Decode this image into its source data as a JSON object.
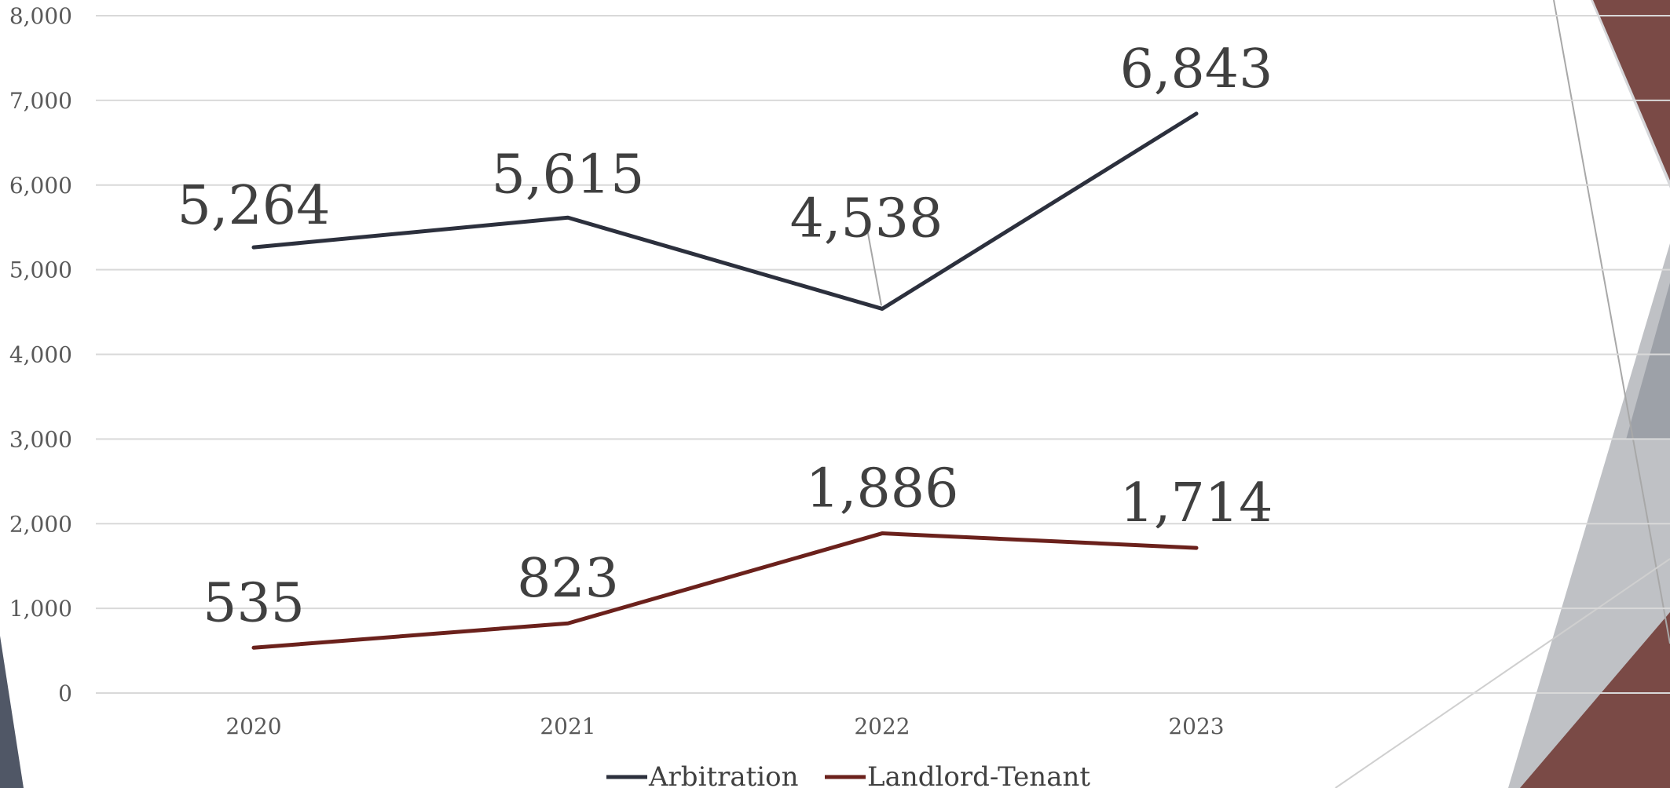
{
  "chart_data": {
    "type": "line",
    "categories": [
      "2020",
      "2021",
      "2022",
      "2023"
    ],
    "series": [
      {
        "name": "Arbitration",
        "values": [
          5264,
          5615,
          4538,
          6843
        ],
        "labels": [
          "5,264",
          "5,615",
          "4,538",
          "6,843"
        ],
        "color": "#2c303d"
      },
      {
        "name": "Landlord-Tenant",
        "values": [
          535,
          823,
          1886,
          1714
        ],
        "labels": [
          "535",
          "823",
          "1,886",
          "1,714"
        ],
        "color": "#6b211c"
      }
    ],
    "ylim": [
      0,
      8000
    ],
    "yticks": [
      0,
      1000,
      2000,
      3000,
      4000,
      5000,
      6000,
      7000,
      8000
    ],
    "ytick_labels": [
      "0",
      "1,000",
      "2,000",
      "3,000",
      "4,000",
      "5,000",
      "6,000",
      "7,000",
      "8,000"
    ],
    "grid": true,
    "legend_position": "bottom-center",
    "title": "",
    "xlabel": "",
    "ylabel": ""
  },
  "theme": {
    "grid_color": "#d9d9d9",
    "tick_color": "#595959",
    "label_color": "#404040",
    "accent_maroon": "#7a4a46",
    "accent_gray": "#bcbec2",
    "accent_slate": "#505766"
  }
}
